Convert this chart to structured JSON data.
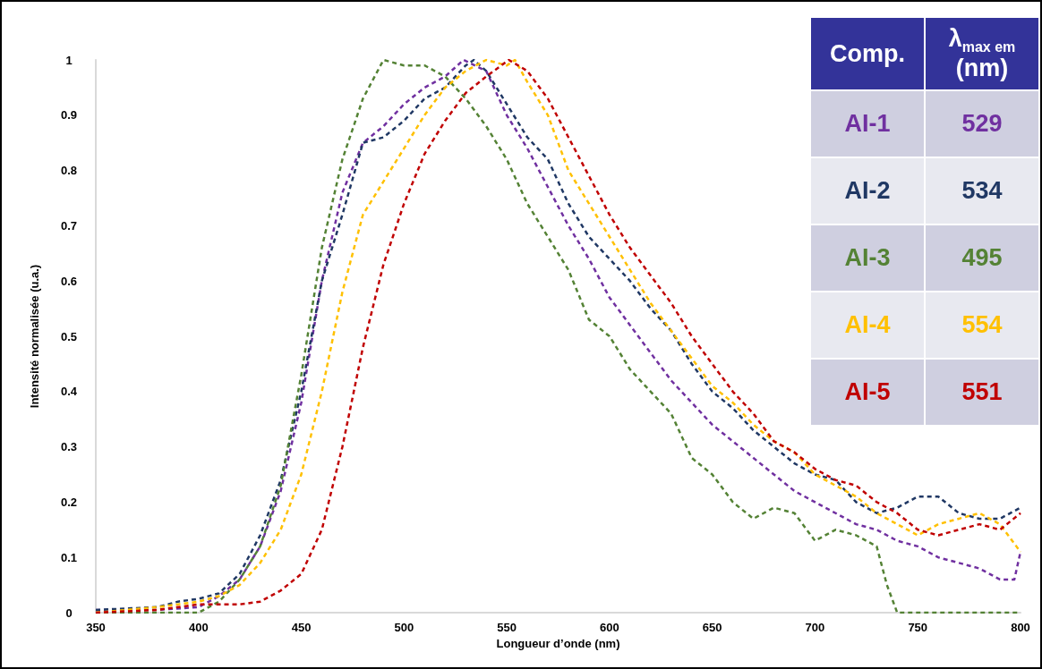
{
  "chart_data": {
    "type": "line",
    "xlabel": "Longueur d’onde (nm)",
    "ylabel": "Intensité normalisée (u.a.)",
    "xlim": [
      350,
      800
    ],
    "xticks": [
      350,
      400,
      450,
      500,
      550,
      600,
      650,
      700,
      750,
      800
    ],
    "ylim": [
      0,
      1
    ],
    "yticks": [
      0,
      0.1,
      0.2,
      0.3,
      0.4,
      0.5,
      0.6,
      0.7,
      0.8,
      0.9,
      1
    ],
    "grid": false,
    "marker": "none",
    "line_style": "dashed",
    "legend": "top right",
    "legend_title": "Comp.",
    "annotations": [
      "λ$_{max em}$ (nm)",
      "529",
      "534",
      "495",
      "554",
      "551"
    ],
    "series": [
      {
        "name": "AI-1",
        "color": "#7030a0",
        "x": [
          350,
          380,
          400,
          410,
          420,
          430,
          440,
          450,
          460,
          470,
          480,
          490,
          500,
          510,
          520,
          529,
          540,
          550,
          560,
          570,
          580,
          590,
          600,
          610,
          620,
          630,
          640,
          650,
          660,
          670,
          680,
          690,
          700,
          710,
          720,
          730,
          740,
          750,
          760,
          770,
          780,
          790,
          797,
          800
        ],
        "values": [
          0.005,
          0.005,
          0.01,
          0.03,
          0.06,
          0.12,
          0.22,
          0.38,
          0.6,
          0.76,
          0.85,
          0.88,
          0.92,
          0.95,
          0.97,
          1.0,
          0.98,
          0.9,
          0.84,
          0.77,
          0.7,
          0.64,
          0.57,
          0.52,
          0.47,
          0.42,
          0.38,
          0.34,
          0.31,
          0.28,
          0.25,
          0.22,
          0.2,
          0.18,
          0.16,
          0.15,
          0.13,
          0.12,
          0.1,
          0.09,
          0.08,
          0.06,
          0.06,
          0.11
        ]
      },
      {
        "name": "AI-2",
        "color": "#203864",
        "x": [
          350,
          380,
          390,
          400,
          410,
          420,
          430,
          440,
          450,
          460,
          470,
          480,
          490,
          500,
          510,
          520,
          530,
          534,
          540,
          550,
          560,
          570,
          580,
          590,
          600,
          610,
          620,
          630,
          640,
          650,
          660,
          670,
          680,
          690,
          700,
          710,
          720,
          730,
          740,
          750,
          760,
          770,
          780,
          790,
          800
        ],
        "values": [
          0.005,
          0.01,
          0.02,
          0.025,
          0.035,
          0.07,
          0.14,
          0.24,
          0.4,
          0.6,
          0.72,
          0.85,
          0.86,
          0.89,
          0.93,
          0.95,
          0.99,
          1.0,
          0.98,
          0.92,
          0.86,
          0.82,
          0.74,
          0.68,
          0.64,
          0.6,
          0.55,
          0.51,
          0.45,
          0.4,
          0.37,
          0.33,
          0.3,
          0.27,
          0.25,
          0.24,
          0.2,
          0.18,
          0.19,
          0.21,
          0.21,
          0.18,
          0.17,
          0.17,
          0.19
        ]
      },
      {
        "name": "AI-3",
        "color": "#548235",
        "x": [
          350,
          380,
          400,
          410,
          420,
          430,
          440,
          450,
          460,
          470,
          480,
          490,
          500,
          510,
          520,
          530,
          540,
          550,
          560,
          570,
          580,
          590,
          600,
          610,
          620,
          630,
          640,
          650,
          660,
          670,
          680,
          690,
          700,
          710,
          720,
          730,
          735,
          740,
          800
        ],
        "values": [
          0,
          0,
          0,
          0.02,
          0.06,
          0.12,
          0.23,
          0.43,
          0.66,
          0.82,
          0.93,
          1.0,
          0.99,
          0.99,
          0.97,
          0.93,
          0.88,
          0.82,
          0.74,
          0.68,
          0.62,
          0.53,
          0.5,
          0.44,
          0.4,
          0.36,
          0.28,
          0.25,
          0.2,
          0.17,
          0.19,
          0.18,
          0.13,
          0.15,
          0.14,
          0.12,
          0.05,
          0,
          0
        ]
      },
      {
        "name": "AI-4",
        "color": "#ffc000",
        "x": [
          350,
          380,
          400,
          410,
          420,
          430,
          440,
          450,
          460,
          470,
          480,
          490,
          500,
          510,
          520,
          530,
          540,
          550,
          554,
          560,
          570,
          580,
          590,
          600,
          610,
          620,
          630,
          640,
          650,
          660,
          670,
          680,
          690,
          700,
          710,
          720,
          730,
          740,
          750,
          760,
          770,
          780,
          790,
          800
        ],
        "values": [
          0,
          0.01,
          0.02,
          0.03,
          0.05,
          0.09,
          0.15,
          0.25,
          0.4,
          0.58,
          0.72,
          0.78,
          0.84,
          0.9,
          0.95,
          0.98,
          1.0,
          0.99,
          1.0,
          0.96,
          0.9,
          0.8,
          0.74,
          0.68,
          0.62,
          0.56,
          0.51,
          0.46,
          0.41,
          0.38,
          0.34,
          0.31,
          0.29,
          0.25,
          0.23,
          0.21,
          0.18,
          0.16,
          0.14,
          0.16,
          0.17,
          0.18,
          0.16,
          0.11
        ]
      },
      {
        "name": "AI-5",
        "color": "#c00000",
        "x": [
          350,
          380,
          400,
          420,
          430,
          440,
          450,
          460,
          470,
          480,
          490,
          500,
          510,
          520,
          530,
          540,
          551,
          560,
          570,
          580,
          590,
          600,
          610,
          620,
          630,
          640,
          650,
          660,
          670,
          680,
          690,
          700,
          710,
          720,
          730,
          740,
          750,
          760,
          770,
          780,
          790,
          800
        ],
        "values": [
          0,
          0.005,
          0.015,
          0.015,
          0.02,
          0.04,
          0.07,
          0.15,
          0.3,
          0.48,
          0.63,
          0.74,
          0.83,
          0.89,
          0.94,
          0.97,
          1.0,
          0.98,
          0.93,
          0.86,
          0.79,
          0.72,
          0.66,
          0.61,
          0.56,
          0.5,
          0.45,
          0.4,
          0.36,
          0.31,
          0.29,
          0.26,
          0.24,
          0.23,
          0.2,
          0.18,
          0.15,
          0.14,
          0.15,
          0.16,
          0.15,
          0.18
        ]
      }
    ]
  }
}
